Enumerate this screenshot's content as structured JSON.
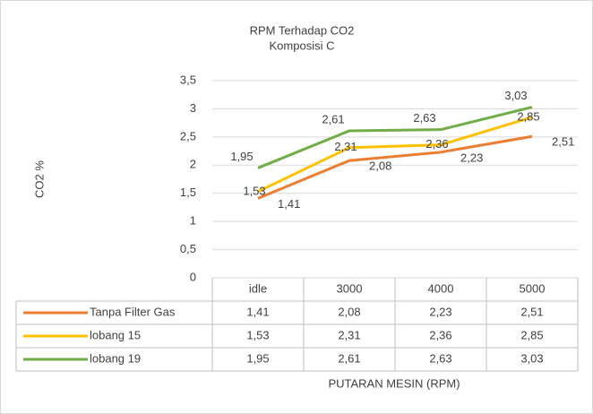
{
  "chart_data": {
    "type": "line",
    "title": "RPM Terhadap CO2",
    "subtitle": "Komposisi C",
    "x_label": "PUTARAN MESIN (RPM)",
    "y_label": "CO2 %",
    "categories": [
      "idle",
      "3000",
      "4000",
      "5000"
    ],
    "series": [
      {
        "name": "Tanpa Filter Gas",
        "color": "#ed7d31",
        "values": [
          1.41,
          2.08,
          2.23,
          2.51
        ],
        "value_labels": [
          "1,41",
          "2,08",
          "2,23",
          "2,51"
        ]
      },
      {
        "name": "lobang 15",
        "color": "#ffc000",
        "values": [
          1.53,
          2.31,
          2.36,
          2.85
        ],
        "value_labels": [
          "1,53",
          "2,31",
          "2,36",
          "2,85"
        ]
      },
      {
        "name": "lobang 19",
        "color": "#70ad47",
        "values": [
          1.95,
          2.61,
          2.63,
          3.03
        ],
        "value_labels": [
          "1,95",
          "2,61",
          "2,63",
          "3,03"
        ]
      }
    ],
    "ylim": [
      0,
      3.5
    ],
    "yticks": [
      0,
      {
        "value": 0.5,
        "label": "0,5"
      },
      1,
      {
        "value": 1.5,
        "label": "1,5"
      },
      2,
      {
        "value": 2.5,
        "label": "2,5"
      },
      3,
      {
        "value": 3.5,
        "label": "3,5"
      }
    ],
    "grid": true
  }
}
